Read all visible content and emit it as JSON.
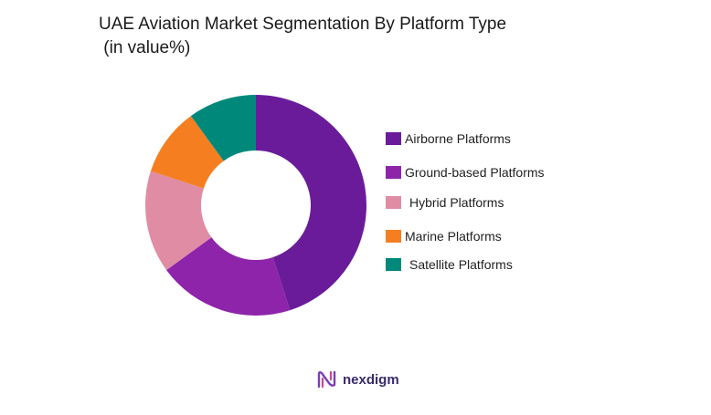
{
  "chart_data": {
    "type": "pie",
    "variant": "donut",
    "title_lines": [
      "UAE Aviation Market Segmentation By Platform Type",
      " (in value%)"
    ],
    "legend_position": "right",
    "slices": [
      {
        "name": "Airborne Platforms",
        "value": 45,
        "color": "#6a1b9a"
      },
      {
        "name": "Ground-based Platforms",
        "value": 20,
        "color": "#8e24aa"
      },
      {
        "name": "Hybrid Platforms",
        "value": 15,
        "color": "#e08ca4"
      },
      {
        "name": "Marine Platforms",
        "value": 10,
        "color": "#f57f20"
      },
      {
        "name": "Satellite Platforms",
        "value": 10,
        "color": "#00897b"
      }
    ]
  },
  "brand": {
    "name": "nexdigm",
    "logo_icon": "nexdigm-logo-icon"
  }
}
